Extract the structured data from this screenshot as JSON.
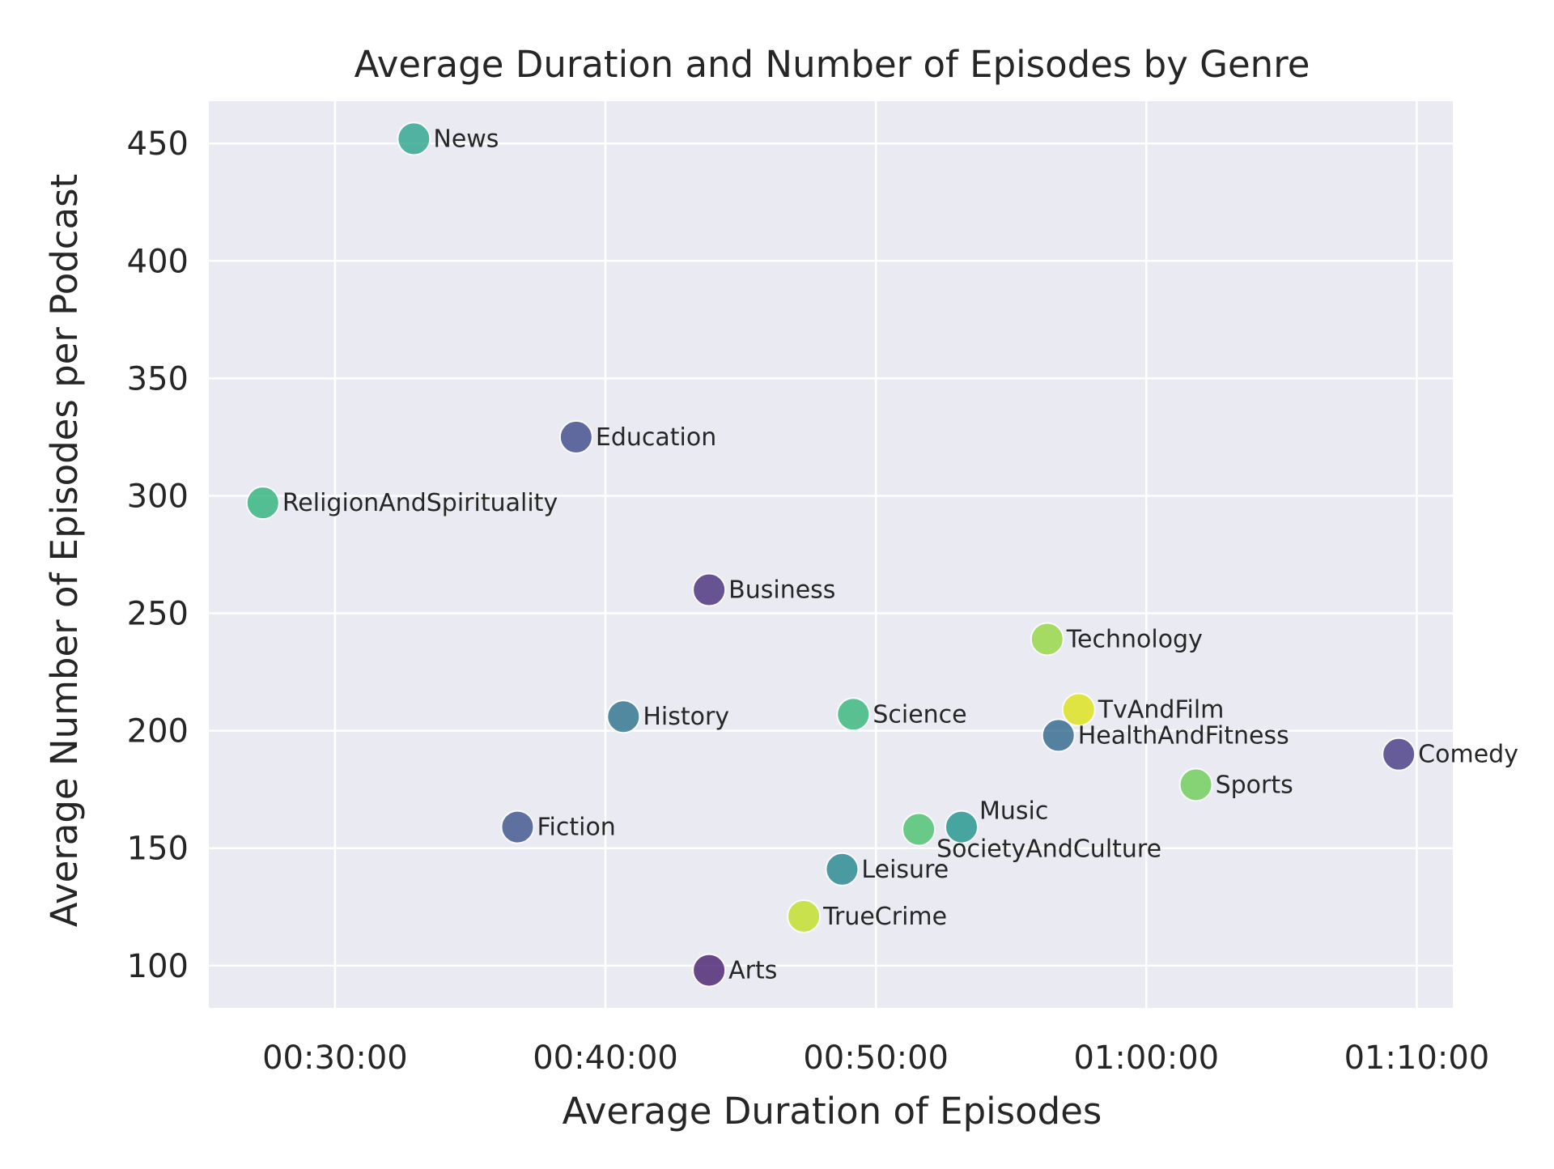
{
  "chart_data": {
    "type": "scatter",
    "title": "Average Duration and Number of Episodes by Genre",
    "xlabel": "Average Duration of Episodes",
    "ylabel": "Average Number of Episodes per Podcast",
    "xlim": [
      "00:25:20",
      "01:11:20"
    ],
    "ylim": [
      82,
      468
    ],
    "x_ticks": [
      "00:30:00",
      "00:40:00",
      "00:50:00",
      "01:00:00",
      "01:10:00"
    ],
    "y_ticks": [
      100,
      150,
      200,
      250,
      300,
      350,
      400,
      450
    ],
    "grid": true,
    "points": [
      {
        "label": "News",
        "x": "00:32:55",
        "y": 452,
        "color": "#2ca58d"
      },
      {
        "label": "Education",
        "x": "00:38:55",
        "y": 325,
        "color": "#3e4a89"
      },
      {
        "label": "ReligionAndSpirituality",
        "x": "00:27:20",
        "y": 297,
        "color": "#2fb47c"
      },
      {
        "label": "Business",
        "x": "00:43:50",
        "y": 260,
        "color": "#472d7b"
      },
      {
        "label": "Technology",
        "x": "00:56:20",
        "y": 239,
        "color": "#95d840"
      },
      {
        "label": "TvAndFilm",
        "x": "00:57:30",
        "y": 209,
        "color": "#dde318"
      },
      {
        "label": "History",
        "x": "00:40:40",
        "y": 206,
        "color": "#2c728e"
      },
      {
        "label": "Science",
        "x": "00:49:10",
        "y": 207,
        "color": "#35b779"
      },
      {
        "label": "HealthAndFitness",
        "x": "00:56:45",
        "y": 198,
        "color": "#31688e"
      },
      {
        "label": "Comedy",
        "x": "01:09:20",
        "y": 190,
        "color": "#443983"
      },
      {
        "label": "Sports",
        "x": "01:01:50",
        "y": 177,
        "color": "#6ece58"
      },
      {
        "label": "Music",
        "x": "00:53:10",
        "y": 159,
        "color": "#1f958b"
      },
      {
        "label": "SocietyAndCulture",
        "x": "00:51:35",
        "y": 158,
        "color": "#4ac16d"
      },
      {
        "label": "Fiction",
        "x": "00:36:45",
        "y": 159,
        "color": "#3b528b"
      },
      {
        "label": "Leisure",
        "x": "00:48:45",
        "y": 141,
        "color": "#23888e"
      },
      {
        "label": "TrueCrime",
        "x": "00:47:20",
        "y": 121,
        "color": "#c0df25"
      },
      {
        "label": "Arts",
        "x": "00:43:50",
        "y": 98,
        "color": "#481f70"
      }
    ],
    "colors": {
      "background": "#ffffff",
      "plot_background": "#eaeaf2",
      "grid": "#ffffff",
      "text": "#262626"
    }
  }
}
